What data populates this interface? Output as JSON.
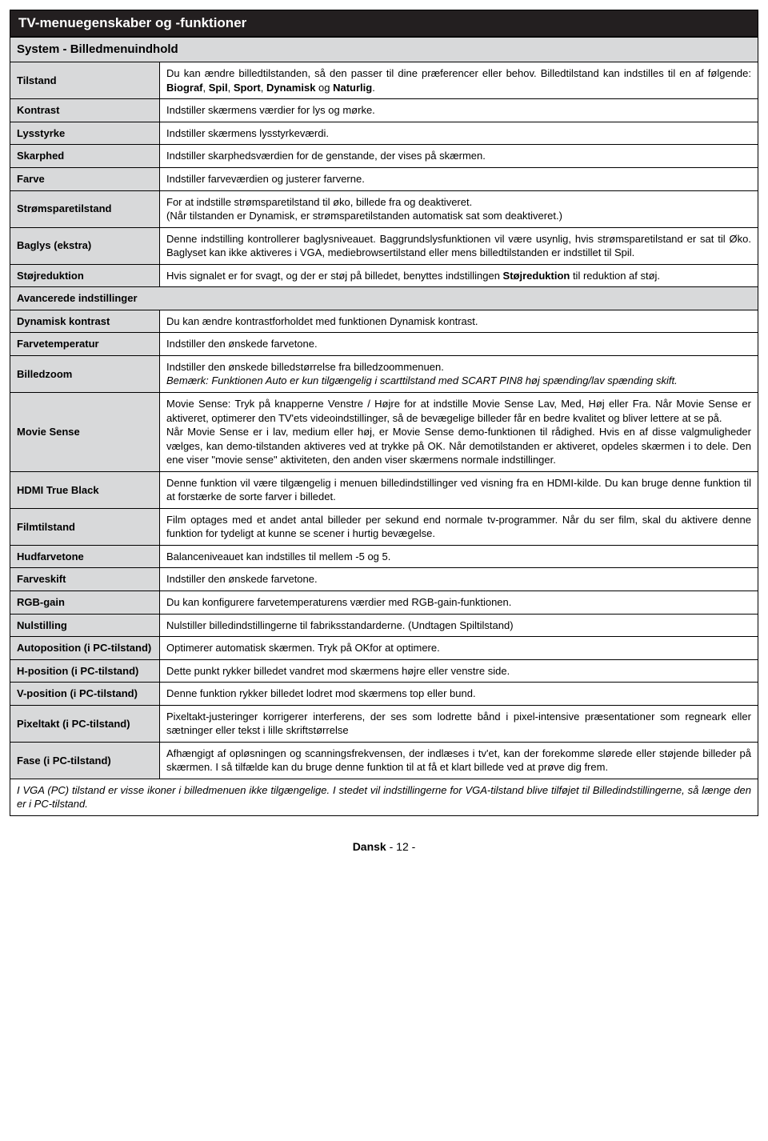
{
  "title": "TV-menuegenskaber og -funktioner",
  "headerRow": "System - Billedmenuindhold",
  "sectionAdvanced": "Avancerede indstillinger",
  "rows": {
    "tilstand": {
      "label": "Tilstand",
      "desc_a": "Du kan ændre billedtilstanden, så den passer til dine præferencer eller behov. Billedtilstand kan indstilles til en af følgende: ",
      "desc_b": "Biograf",
      "desc_c": ", ",
      "desc_d": "Spil",
      "desc_e": ", ",
      "desc_f": "Sport",
      "desc_g": ", ",
      "desc_h": "Dynamisk",
      "desc_i": " og ",
      "desc_j": "Naturlig",
      "desc_k": "."
    },
    "kontrast": {
      "label": "Kontrast",
      "desc": "Indstiller skærmens værdier for lys og mørke."
    },
    "lysstyrke": {
      "label": "Lysstyrke",
      "desc": "Indstiller skærmens lysstyrkeværdi."
    },
    "skarphed": {
      "label": "Skarphed",
      "desc": "Indstiller skarphedsværdien for de genstande, der vises på skærmen."
    },
    "farve": {
      "label": "Farve",
      "desc": "Indstiller farveværdien og justerer farverne."
    },
    "stromspare": {
      "label": "Strømsparetilstand",
      "line1": " For at indstille strømsparetilstand til øko, billede fra og deaktiveret.",
      "line2": "(Når tilstanden er Dynamisk, er strømsparetilstanden automatisk sat som deaktiveret.)"
    },
    "baglys": {
      "label": "Baglys (ekstra)",
      "desc": "Denne indstilling kontrollerer baglysniveauet. Baggrundslysfunktionen vil være usynlig, hvis strømsparetilstand er sat til Øko. Baglyset kan ikke aktiveres i VGA, mediebrowsertilstand eller mens billedtilstanden er indstillet til Spil."
    },
    "stoj": {
      "label": "Støjreduktion",
      "a": "Hvis signalet er for svagt, og der er støj på billedet, benyttes indstillingen ",
      "b": "Støjreduktion",
      "c": " til reduktion af støj."
    },
    "dynkontrast": {
      "label": "Dynamisk kontrast",
      "desc": "Du kan ændre kontrastforholdet med funktionen Dynamisk kontrast."
    },
    "farvetemp": {
      "label": "Farvetemperatur",
      "desc": "Indstiller den ønskede farvetone."
    },
    "billedzoom": {
      "label": "Billedzoom",
      "line1": "Indstiller den ønskede billedstørrelse fra billedzoommenuen.",
      "line2": "Bemærk: Funktionen Auto er kun tilgængelig i scarttilstand med SCART PIN8 høj spænding/lav spænding skift."
    },
    "moviesense": {
      "label": "Movie Sense",
      "p1": "Movie Sense: Tryk på knapperne Venstre / Højre for at indstille Movie Sense Lav, Med, Høj eller Fra. Når Movie Sense er aktiveret, optimerer den TV'ets videoindstillinger, så de bevægelige billeder får en bedre kvalitet og bliver lettere at se på.",
      "p2": "Når Movie Sense er i lav, medium eller høj, er Movie Sense demo-funktionen til rådighed. Hvis en af disse valgmuligheder vælges, kan demo-tilstanden aktiveres ved at trykke på OK. Når demotilstanden er aktiveret, opdeles skærmen i to dele. Den ene viser \"movie sense\" aktiviteten, den anden viser skærmens normale indstillinger."
    },
    "hdmi": {
      "label": "HDMI True Black",
      "desc": "Denne funktion vil være tilgængelig i menuen billedindstillinger ved visning fra en HDMI-kilde. Du kan bruge denne funktion til at forstærke de sorte farver i billedet."
    },
    "filmtilstand": {
      "label": "Filmtilstand",
      "desc": "Film optages med et andet antal billeder per sekund end normale tv-programmer. Når du ser film, skal du aktivere denne funktion for tydeligt at kunne se scener i hurtig bevægelse."
    },
    "hudfarve": {
      "label": "Hudfarvetone",
      "desc": "Balanceniveauet kan indstilles til mellem -5 og 5."
    },
    "farveskift": {
      "label": "Farveskift",
      "desc": "Indstiller den ønskede farvetone."
    },
    "rgb": {
      "label": "RGB-gain",
      "desc": "Du kan konfigurere farvetemperaturens værdier med RGB-gain-funktionen."
    },
    "nulstilling": {
      "label": "Nulstilling",
      "desc": "Nulstiller billedindstillingerne til fabriksstandarderne. (Undtagen Spiltilstand)"
    },
    "autopos": {
      "label": "Autoposition (i PC-tilstand)",
      "desc": "Optimerer automatisk skærmen. Tryk på OKfor at optimere."
    },
    "hpos": {
      "label": "H-position (i PC-tilstand)",
      "desc": "Dette punkt rykker billedet vandret mod skærmens højre eller venstre side."
    },
    "vpos": {
      "label": "V-position (i PC-tilstand)",
      "desc": "Denne funktion rykker billedet lodret mod skærmens top eller bund."
    },
    "pixeltakt": {
      "label": "Pixeltakt (i PC-tilstand)",
      "desc": "Pixeltakt-justeringer korrigerer interferens, der ses som lodrette bånd i pixel-intensive præsentationer som regneark eller sætninger eller tekst i lille skriftstørrelse"
    },
    "fase": {
      "label": "Fase (i PC-tilstand)",
      "desc": "Afhængigt af opløsningen og scanningsfrekvensen, der indlæses i tv'et, kan der forekomme slørede eller støjende billeder på skærmen. I så tilfælde kan du bruge denne funktion til at få et klart billede ved at prøve dig frem."
    }
  },
  "footnote": "I VGA (PC) tilstand er visse ikoner i billedmenuen ikke tilgængelige. I stedet vil indstillingerne for VGA-tilstand blive tilføjet til Billedindstillingerne, så længe den er i PC-tilstand.",
  "footer_a": "Dansk",
  "footer_b": "   - 12 -"
}
